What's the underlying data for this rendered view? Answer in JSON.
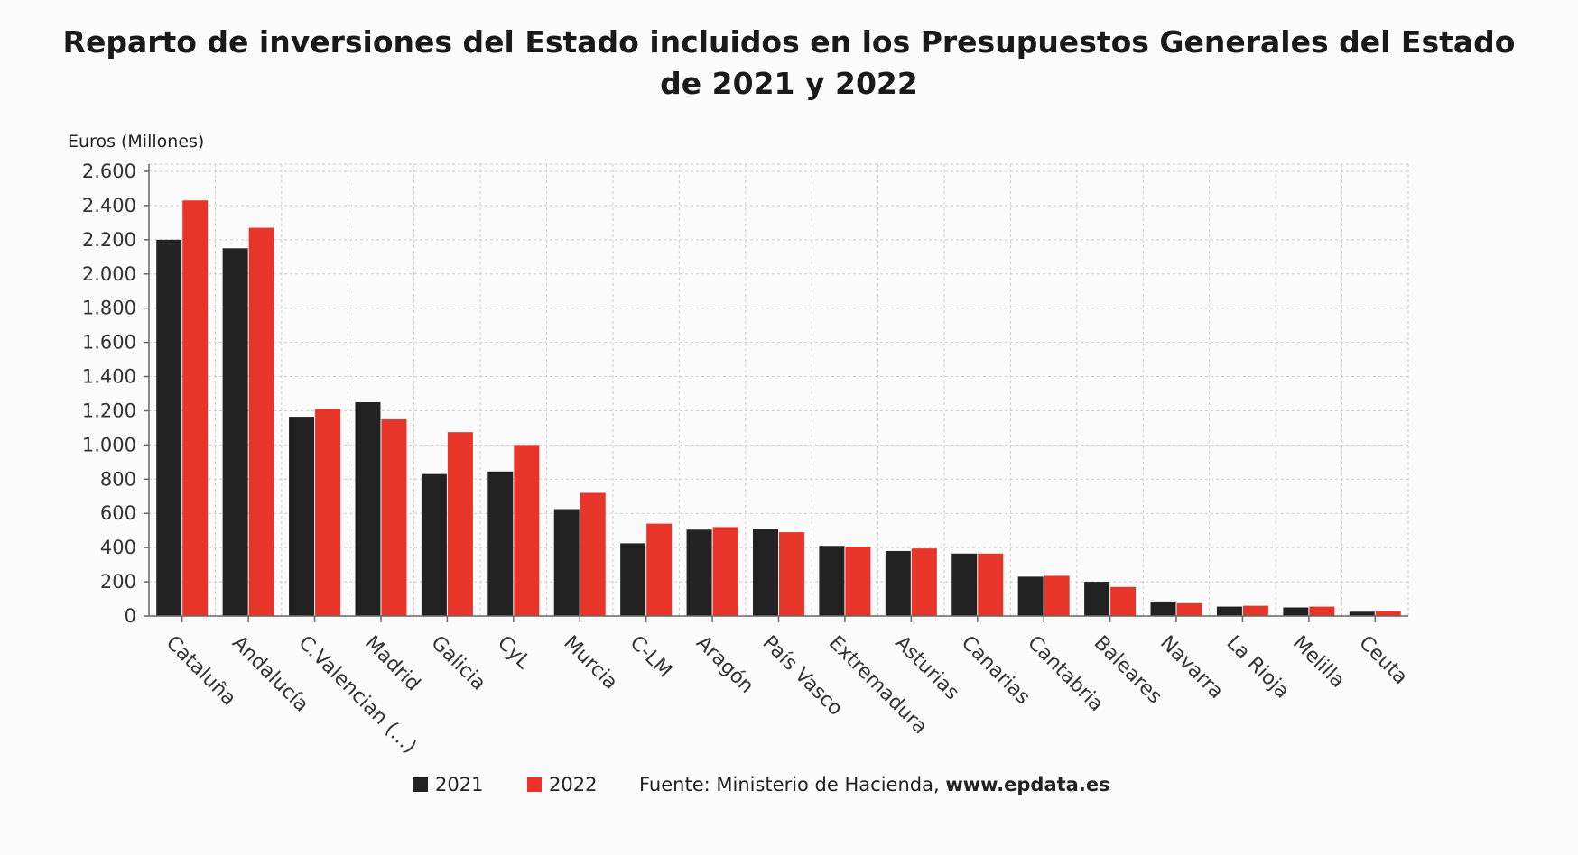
{
  "chart_data": {
    "type": "bar",
    "title": "Reparto de inversiones del Estado incluidos en los Presupuestos Generales del Estado de 2021 y 2022",
    "title_lines": [
      "Reparto de inversiones del Estado incluidos en los Presupuestos Generales del Estado",
      "de 2021 y 2022"
    ],
    "ylabel": "Euros (Millones)",
    "xlabel": "",
    "ylim": [
      0,
      2600
    ],
    "yticks": [
      0,
      200,
      400,
      600,
      800,
      1000,
      1200,
      1400,
      1600,
      1800,
      2000,
      2200,
      2400,
      2600
    ],
    "ytick_labels": [
      "0",
      "200",
      "400",
      "600",
      "800",
      "1.000",
      "1.200",
      "1.400",
      "1.600",
      "1.800",
      "2.000",
      "2.200",
      "2.400",
      "2.600"
    ],
    "grid": true,
    "legend_position": "bottom",
    "categories": [
      "Cataluña",
      "Andalucía",
      "C.Valencian (...)",
      "Madrid",
      "Galicia",
      "CyL",
      "Murcia",
      "C-LM",
      "Aragón",
      "País Vasco",
      "Extremadura",
      "Asturias",
      "Canarias",
      "Cantabria",
      "Baleares",
      "Navarra",
      "La Rioja",
      "Melilla",
      "Ceuta"
    ],
    "series": [
      {
        "name": "2021",
        "color": "#222222",
        "values": [
          2200,
          2150,
          1165,
          1250,
          830,
          845,
          625,
          425,
          505,
          510,
          410,
          380,
          365,
          230,
          200,
          85,
          55,
          50,
          25
        ]
      },
      {
        "name": "2022",
        "color": "#e8352a",
        "values": [
          2430,
          2270,
          1210,
          1150,
          1075,
          1000,
          720,
          540,
          520,
          490,
          405,
          395,
          365,
          235,
          170,
          75,
          60,
          55,
          30
        ]
      }
    ],
    "source_label": "Fuente: Ministerio de Hacienda, ",
    "source_site": "www.epdata.es"
  }
}
